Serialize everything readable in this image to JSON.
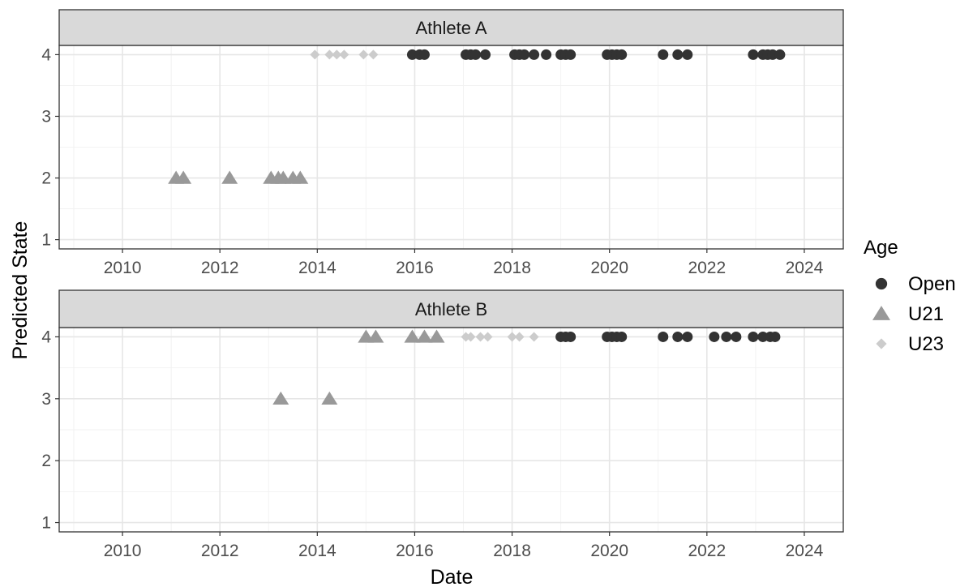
{
  "chart_data": {
    "type": "scatter",
    "facets": [
      {
        "title": "Athlete A",
        "points": [
          {
            "x": 2011.1,
            "y": 2,
            "group": "U21"
          },
          {
            "x": 2011.25,
            "y": 2,
            "group": "U21"
          },
          {
            "x": 2012.2,
            "y": 2,
            "group": "U21"
          },
          {
            "x": 2013.05,
            "y": 2,
            "group": "U21"
          },
          {
            "x": 2013.2,
            "y": 2,
            "group": "U21"
          },
          {
            "x": 2013.3,
            "y": 2,
            "group": "U21"
          },
          {
            "x": 2013.5,
            "y": 2,
            "group": "U21"
          },
          {
            "x": 2013.65,
            "y": 2,
            "group": "U21"
          },
          {
            "x": 2013.95,
            "y": 4,
            "group": "U23"
          },
          {
            "x": 2014.25,
            "y": 4,
            "group": "U23"
          },
          {
            "x": 2014.4,
            "y": 4,
            "group": "U23"
          },
          {
            "x": 2014.55,
            "y": 4,
            "group": "U23"
          },
          {
            "x": 2014.95,
            "y": 4,
            "group": "U23"
          },
          {
            "x": 2015.15,
            "y": 4,
            "group": "U23"
          },
          {
            "x": 2015.95,
            "y": 4,
            "group": "Open"
          },
          {
            "x": 2016.1,
            "y": 4,
            "group": "Open"
          },
          {
            "x": 2016.2,
            "y": 4,
            "group": "Open"
          },
          {
            "x": 2017.05,
            "y": 4,
            "group": "Open"
          },
          {
            "x": 2017.15,
            "y": 4,
            "group": "Open"
          },
          {
            "x": 2017.25,
            "y": 4,
            "group": "Open"
          },
          {
            "x": 2017.45,
            "y": 4,
            "group": "Open"
          },
          {
            "x": 2018.05,
            "y": 4,
            "group": "Open"
          },
          {
            "x": 2018.15,
            "y": 4,
            "group": "Open"
          },
          {
            "x": 2018.25,
            "y": 4,
            "group": "Open"
          },
          {
            "x": 2018.45,
            "y": 4,
            "group": "Open"
          },
          {
            "x": 2018.7,
            "y": 4,
            "group": "Open"
          },
          {
            "x": 2019.0,
            "y": 4,
            "group": "Open"
          },
          {
            "x": 2019.1,
            "y": 4,
            "group": "Open"
          },
          {
            "x": 2019.2,
            "y": 4,
            "group": "Open"
          },
          {
            "x": 2019.95,
            "y": 4,
            "group": "Open"
          },
          {
            "x": 2020.05,
            "y": 4,
            "group": "Open"
          },
          {
            "x": 2020.15,
            "y": 4,
            "group": "Open"
          },
          {
            "x": 2020.25,
            "y": 4,
            "group": "Open"
          },
          {
            "x": 2021.1,
            "y": 4,
            "group": "Open"
          },
          {
            "x": 2021.4,
            "y": 4,
            "group": "Open"
          },
          {
            "x": 2021.6,
            "y": 4,
            "group": "Open"
          },
          {
            "x": 2022.95,
            "y": 4,
            "group": "Open"
          },
          {
            "x": 2023.15,
            "y": 4,
            "group": "Open"
          },
          {
            "x": 2023.25,
            "y": 4,
            "group": "Open"
          },
          {
            "x": 2023.35,
            "y": 4,
            "group": "Open"
          },
          {
            "x": 2023.5,
            "y": 4,
            "group": "Open"
          }
        ]
      },
      {
        "title": "Athlete B",
        "points": [
          {
            "x": 2013.25,
            "y": 3,
            "group": "U21"
          },
          {
            "x": 2014.25,
            "y": 3,
            "group": "U21"
          },
          {
            "x": 2015.0,
            "y": 4,
            "group": "U21"
          },
          {
            "x": 2015.2,
            "y": 4,
            "group": "U21"
          },
          {
            "x": 2015.95,
            "y": 4,
            "group": "U21"
          },
          {
            "x": 2016.2,
            "y": 4,
            "group": "U21"
          },
          {
            "x": 2016.45,
            "y": 4,
            "group": "U21"
          },
          {
            "x": 2017.05,
            "y": 4,
            "group": "U23"
          },
          {
            "x": 2017.15,
            "y": 4,
            "group": "U23"
          },
          {
            "x": 2017.35,
            "y": 4,
            "group": "U23"
          },
          {
            "x": 2017.5,
            "y": 4,
            "group": "U23"
          },
          {
            "x": 2018.0,
            "y": 4,
            "group": "U23"
          },
          {
            "x": 2018.15,
            "y": 4,
            "group": "U23"
          },
          {
            "x": 2018.45,
            "y": 4,
            "group": "U23"
          },
          {
            "x": 2019.0,
            "y": 4,
            "group": "Open"
          },
          {
            "x": 2019.1,
            "y": 4,
            "group": "Open"
          },
          {
            "x": 2019.2,
            "y": 4,
            "group": "Open"
          },
          {
            "x": 2019.95,
            "y": 4,
            "group": "Open"
          },
          {
            "x": 2020.05,
            "y": 4,
            "group": "Open"
          },
          {
            "x": 2020.15,
            "y": 4,
            "group": "Open"
          },
          {
            "x": 2020.25,
            "y": 4,
            "group": "Open"
          },
          {
            "x": 2021.1,
            "y": 4,
            "group": "Open"
          },
          {
            "x": 2021.4,
            "y": 4,
            "group": "Open"
          },
          {
            "x": 2021.6,
            "y": 4,
            "group": "Open"
          },
          {
            "x": 2022.15,
            "y": 4,
            "group": "Open"
          },
          {
            "x": 2022.4,
            "y": 4,
            "group": "Open"
          },
          {
            "x": 2022.6,
            "y": 4,
            "group": "Open"
          },
          {
            "x": 2022.95,
            "y": 4,
            "group": "Open"
          },
          {
            "x": 2023.15,
            "y": 4,
            "group": "Open"
          },
          {
            "x": 2023.3,
            "y": 4,
            "group": "Open"
          },
          {
            "x": 2023.4,
            "y": 4,
            "group": "Open"
          }
        ]
      }
    ],
    "xlabel": "Date",
    "ylabel": "Predicted State",
    "xlim": [
      2008.7,
      2024.8
    ],
    "ylim": [
      0.85,
      4.15
    ],
    "xticks": [
      2010,
      2012,
      2014,
      2016,
      2018,
      2020,
      2022,
      2024
    ],
    "yticks": [
      1,
      2,
      3,
      4
    ],
    "grid": true,
    "legend": {
      "title": "Age",
      "position": "right",
      "entries": [
        {
          "label": "Open",
          "shape": "circle",
          "color": "#333333"
        },
        {
          "label": "U21",
          "shape": "triangle",
          "color": "#999999"
        },
        {
          "label": "U23",
          "shape": "diamond",
          "color": "#cccccc"
        }
      ]
    }
  }
}
